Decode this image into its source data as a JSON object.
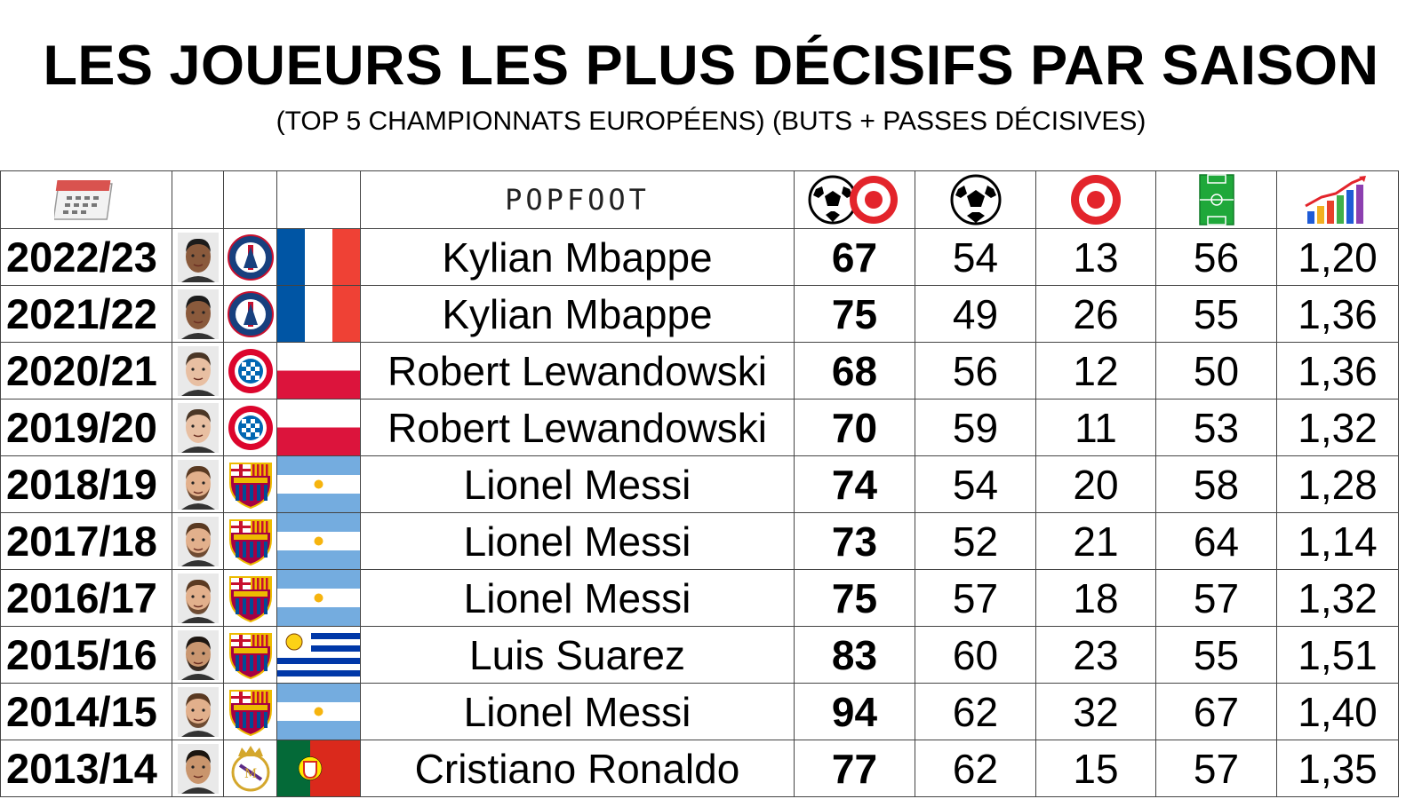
{
  "header": {
    "title": "LES JOUEURS LES PLUS DÉCISIFS PAR SAISON",
    "subtitle": "(TOP 5 CHAMPIONNATS EUROPÉENS) (BUTS + PASSES DÉCISIVES)"
  },
  "brand": "POPFOOT",
  "icons": {
    "season_col": "calendar-icon",
    "total_col": "ball-and-target-icon",
    "goals_col": "soccer-ball-icon",
    "assists_col": "target-icon",
    "matches_col": "pitch-icon",
    "ratio_col": "growth-chart-icon"
  },
  "colors": {
    "target_red": "#e3242b",
    "pitch_green": "#1fa83a",
    "border": "#444444"
  },
  "chart_data": {
    "type": "table",
    "title": "LES JOUEURS LES PLUS DÉCISIFS PAR SAISON",
    "subtitle": "(TOP 5 CHAMPIONNATS EUROPÉENS) (BUTS + PASSES DÉCISIVES)",
    "rows": [
      {
        "season": "2022/23",
        "player": "Kylian Mbappe",
        "club": "psg",
        "flag": "france",
        "total": "67",
        "goals": "54",
        "assists": "13",
        "matches": "56",
        "ratio": "1,20"
      },
      {
        "season": "2021/22",
        "player": "Kylian Mbappe",
        "club": "psg",
        "flag": "france",
        "total": "75",
        "goals": "49",
        "assists": "26",
        "matches": "55",
        "ratio": "1,36"
      },
      {
        "season": "2020/21",
        "player": "Robert Lewandowski",
        "club": "bayern",
        "flag": "poland",
        "total": "68",
        "goals": "56",
        "assists": "12",
        "matches": "50",
        "ratio": "1,36"
      },
      {
        "season": "2019/20",
        "player": "Robert Lewandowski",
        "club": "bayern",
        "flag": "poland",
        "total": "70",
        "goals": "59",
        "assists": "11",
        "matches": "53",
        "ratio": "1,32"
      },
      {
        "season": "2018/19",
        "player": "Lionel Messi",
        "club": "barcelona",
        "flag": "argentina",
        "total": "74",
        "goals": "54",
        "assists": "20",
        "matches": "58",
        "ratio": "1,28"
      },
      {
        "season": "2017/18",
        "player": "Lionel Messi",
        "club": "barcelona",
        "flag": "argentina",
        "total": "73",
        "goals": "52",
        "assists": "21",
        "matches": "64",
        "ratio": "1,14"
      },
      {
        "season": "2016/17",
        "player": "Lionel Messi",
        "club": "barcelona",
        "flag": "argentina",
        "total": "75",
        "goals": "57",
        "assists": "18",
        "matches": "57",
        "ratio": "1,32"
      },
      {
        "season": "2015/16",
        "player": "Luis Suarez",
        "club": "barcelona",
        "flag": "uruguay",
        "total": "83",
        "goals": "60",
        "assists": "23",
        "matches": "55",
        "ratio": "1,51"
      },
      {
        "season": "2014/15",
        "player": "Lionel Messi",
        "club": "barcelona",
        "flag": "argentina",
        "total": "94",
        "goals": "62",
        "assists": "32",
        "matches": "67",
        "ratio": "1,40"
      },
      {
        "season": "2013/14",
        "player": "Cristiano Ronaldo",
        "club": "real-madrid",
        "flag": "portugal",
        "total": "77",
        "goals": "62",
        "assists": "15",
        "matches": "57",
        "ratio": "1,35"
      }
    ]
  }
}
